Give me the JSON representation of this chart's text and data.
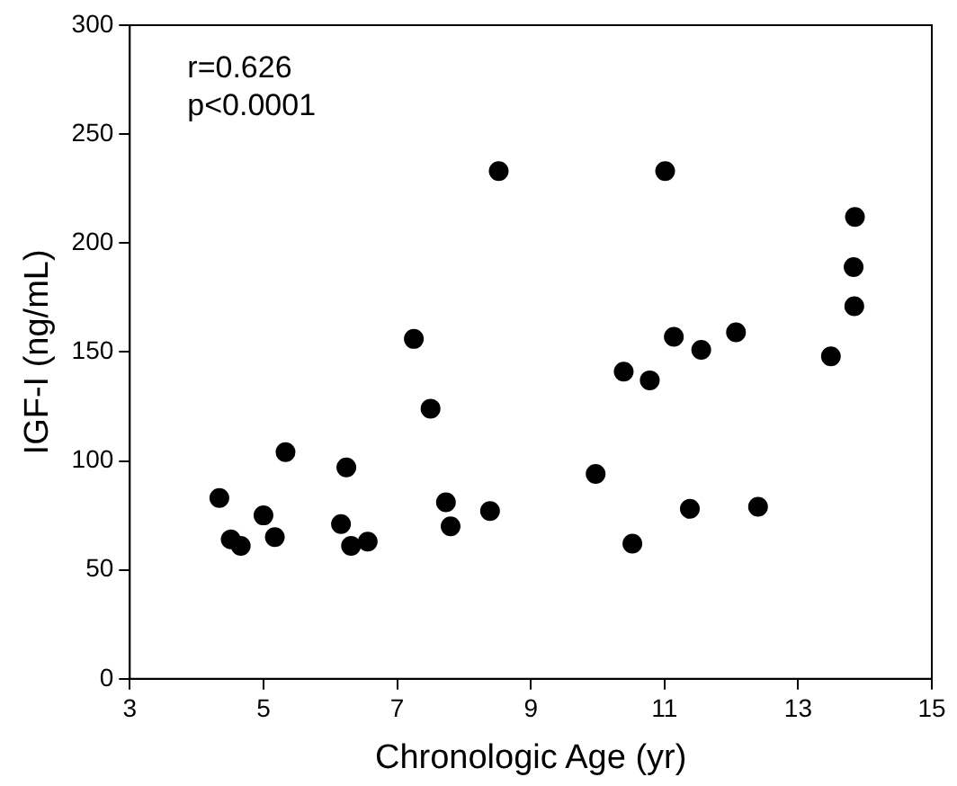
{
  "chart_data": {
    "type": "scatter",
    "xlabel": "Chronologic Age (yr)",
    "ylabel": "IGF-I (ng/mL)",
    "annotations": [
      "r=0.626",
      "p<0.0001"
    ],
    "x": [
      4.34,
      4.51,
      4.66,
      5.0,
      5.17,
      5.33,
      6.16,
      6.24,
      6.31,
      6.56,
      7.25,
      7.5,
      7.73,
      7.8,
      8.39,
      8.52,
      9.97,
      10.39,
      10.52,
      10.78,
      11.01,
      11.14,
      11.38,
      11.55,
      12.07,
      12.4,
      13.49,
      13.85,
      13.83,
      13.84
    ],
    "values": [
      83,
      64,
      61,
      75,
      65,
      104,
      71,
      97,
      61,
      63,
      156,
      124,
      81,
      70,
      77,
      233,
      94,
      141,
      62,
      137,
      233,
      157,
      78,
      151,
      159,
      79,
      148,
      212,
      189,
      171
    ],
    "color": "#000000",
    "marker": "circle",
    "grid": false,
    "legend": false,
    "xlim": [
      3,
      15
    ],
    "xticks": [
      3,
      5,
      7,
      9,
      11,
      13,
      15
    ],
    "ylim": [
      0,
      300
    ],
    "yticks": [
      0,
      50,
      100,
      150,
      200,
      250,
      300
    ]
  }
}
